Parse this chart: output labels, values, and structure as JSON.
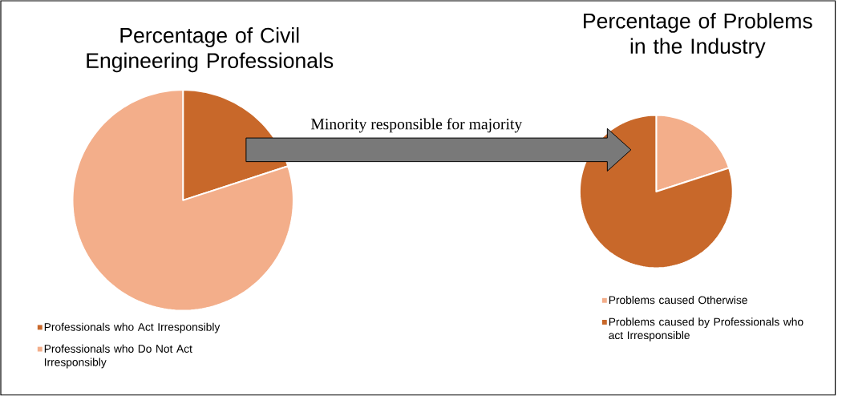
{
  "chart_data": [
    {
      "type": "pie",
      "title": "Percentage of Civil Engineering Professionals",
      "categories": [
        "Professionals who Act Irresponsibly",
        "Professionals who Do Not Act Irresponsibly"
      ],
      "values": [
        20,
        80
      ],
      "colors": [
        "#c8682a",
        "#f3ae8a"
      ],
      "legend": "bottom",
      "annotations": [
        "Minority responsible for majority"
      ]
    },
    {
      "type": "pie",
      "title": "Percentage of Problems in the Industry",
      "categories": [
        "Problems caused Otherwise",
        "Problems caused by Professionals who act Irresponsible"
      ],
      "values": [
        20,
        80
      ],
      "colors": [
        "#f3ae8a",
        "#c8682a"
      ],
      "legend": "bottom"
    }
  ]
}
